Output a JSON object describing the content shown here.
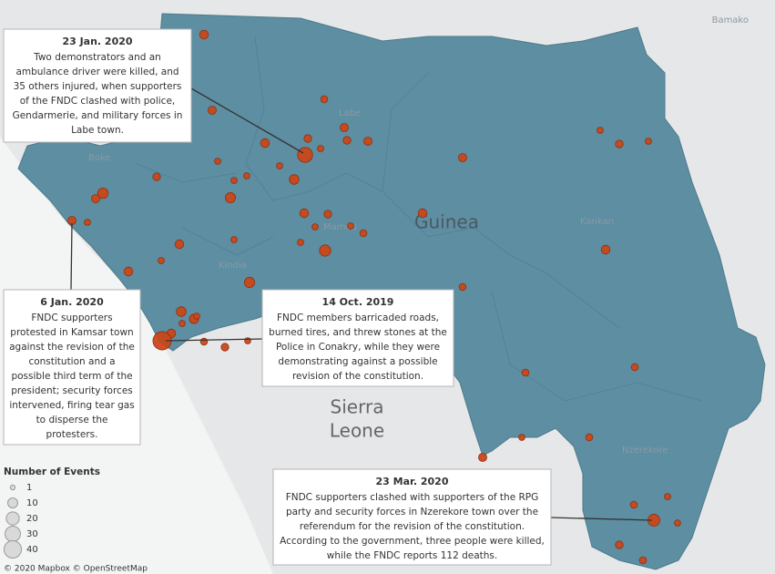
{
  "map": {
    "places": [
      "Bamako",
      "Labe",
      "Boke",
      "Mamou",
      "Kindia",
      "Guinea",
      "Kankan",
      "Sierra",
      "Leone",
      "Nzerekore"
    ],
    "attribution": "© 2020 Mapbox © OpenStreetMap",
    "legend": {
      "title": "Number of Events",
      "values": [
        1,
        10,
        20,
        30,
        40
      ]
    },
    "events": [
      6,
      5,
      6,
      25,
      8,
      2,
      2,
      4,
      3,
      5,
      4,
      5,
      10,
      5,
      5,
      2,
      4,
      9,
      2,
      2,
      2,
      6,
      4,
      2,
      2,
      12,
      3,
      2,
      2,
      6,
      2,
      9,
      6,
      8,
      7,
      2,
      2,
      6,
      40,
      3,
      4,
      2,
      5,
      2,
      4,
      2,
      6,
      6,
      3,
      3,
      3,
      5,
      2,
      3,
      3,
      2,
      14,
      2,
      4,
      3
    ],
    "annotations": [
      {
        "title": "23 Jan. 2020",
        "lines": [
          "Two demonstrators and an",
          "ambulance driver were killed, and",
          "35 others injured, when supporters",
          "of the FNDC clashed with police,",
          "Gendarmerie, and military forces in",
          "Labe town."
        ]
      },
      {
        "title": "6 Jan. 2020",
        "lines": [
          "FNDC supporters",
          "protested in Kamsar town",
          "against the revision of the",
          "constitution and a",
          "possible third term of the",
          "president; security forces",
          "intervened, firing tear gas",
          "to disperse the",
          "protesters."
        ]
      },
      {
        "title": "14 Oct. 2019",
        "lines": [
          "FNDC members barricaded roads,",
          "burned tires, and threw stones at the",
          "Police in Conakry, while they were",
          "demonstrating against a possible",
          "revision of the constitution."
        ]
      },
      {
        "title": "23 Mar. 2020",
        "lines": [
          "FNDC supporters clashed with supporters of the RPG",
          "party and security forces in Nzerekore town over the",
          "referendum for the revision of the constitution.",
          "According to the government, three people were killed,",
          "while the FNDC reports 112 deaths."
        ]
      }
    ]
  }
}
